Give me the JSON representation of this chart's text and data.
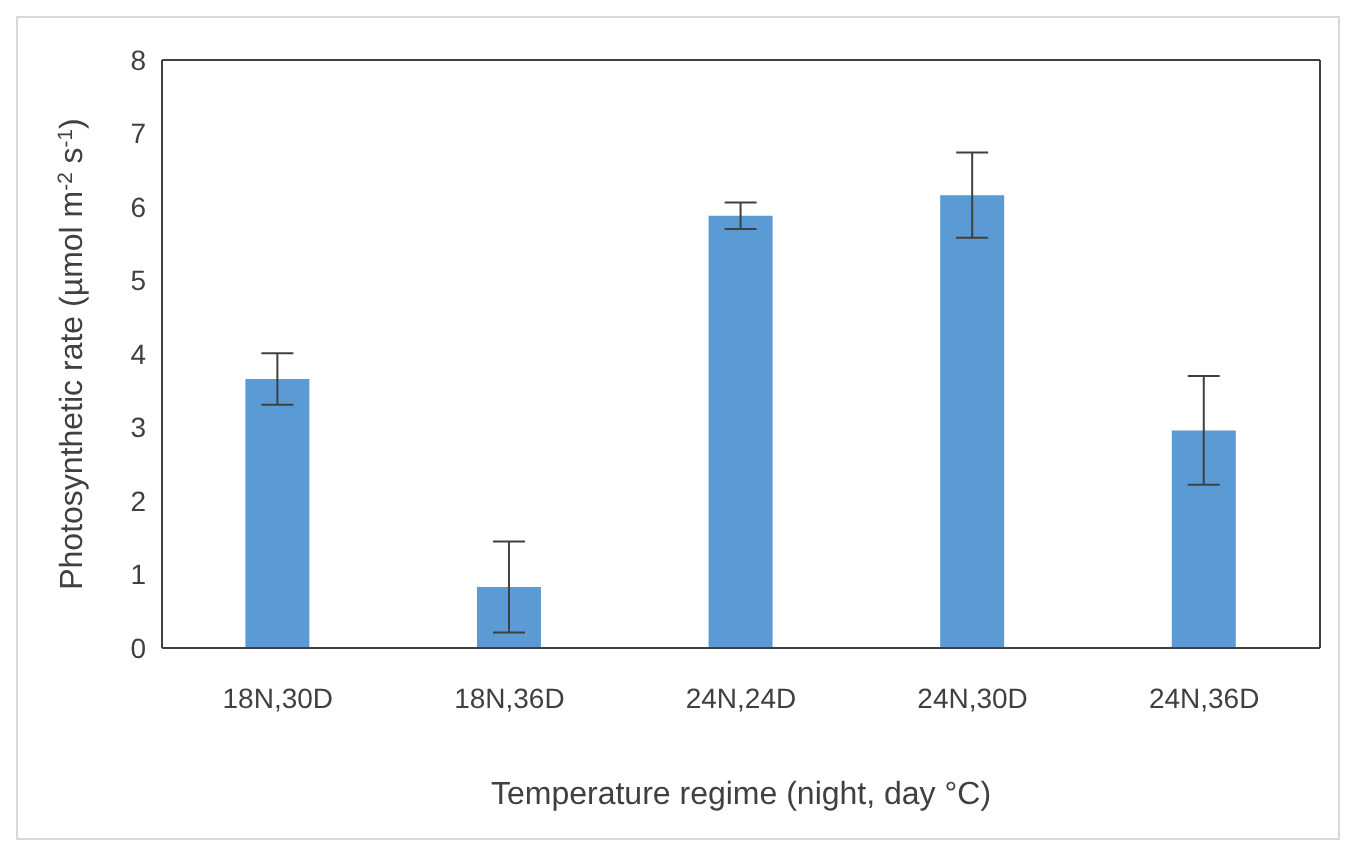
{
  "chart_data": {
    "type": "bar",
    "xlabel": "Temperature regime (night, day °C)",
    "ylabel": "Photosynthetic rate (µmol m$^{-2}$ s$^{-1}$)",
    "categories": [
      "18N,30D",
      "18N,36D",
      "24N,24D",
      "24N,30D",
      "24N,36D"
    ],
    "values": [
      3.66,
      0.83,
      5.88,
      6.16,
      2.96
    ],
    "errors": [
      0.35,
      0.62,
      0.18,
      0.58,
      0.74
    ],
    "color": "#5b9bd5",
    "ylim": [
      0,
      8
    ],
    "yticks": [
      0,
      1,
      2,
      3,
      4,
      5,
      6,
      7,
      8
    ],
    "grid": false
  }
}
